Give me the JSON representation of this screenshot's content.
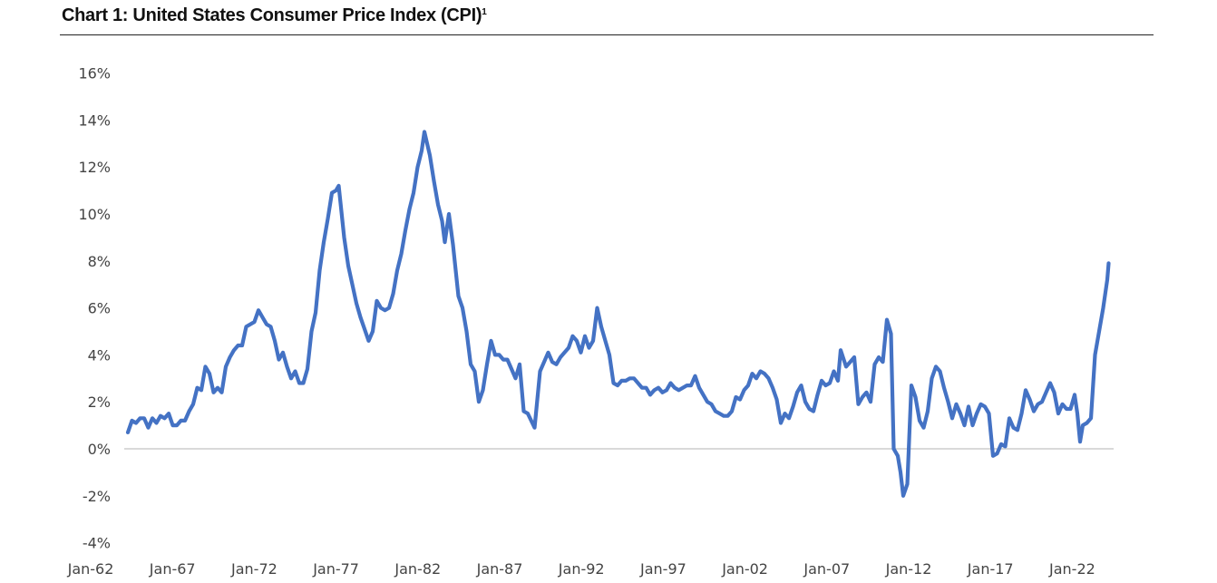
{
  "chart_data": {
    "type": "line",
    "title": "Chart 1: United States Consumer Price Index (CPI)",
    "title_superscript": "1",
    "xlabel": "",
    "ylabel": "",
    "ylim": [
      -4,
      16
    ],
    "y_ticks": [
      "16%",
      "14%",
      "12%",
      "10%",
      "8%",
      "6%",
      "4%",
      "2%",
      "0%",
      "-2%",
      "-4%"
    ],
    "y_tick_values": [
      16,
      14,
      12,
      10,
      8,
      6,
      4,
      2,
      0,
      -2,
      -4
    ],
    "x_ticks": [
      "Jan-62",
      "Jan-67",
      "Jan-72",
      "Jan-77",
      "Jan-82",
      "Jan-87",
      "Jan-92",
      "Jan-97",
      "Jan-02",
      "Jan-07",
      "Jan-12",
      "Jan-17",
      "Jan-22"
    ],
    "grid": false,
    "zero_line": true,
    "legend": "none",
    "colors": {
      "series": "#4472C4",
      "zero_line": "#D9D9D9"
    },
    "series": [
      {
        "points": [
          [
            "1962-01",
            0.7
          ],
          [
            "1962-04",
            1.2
          ],
          [
            "1962-07",
            1.1
          ],
          [
            "1962-10",
            1.3
          ],
          [
            "1963-01",
            1.3
          ],
          [
            "1963-04",
            0.9
          ],
          [
            "1963-07",
            1.3
          ],
          [
            "1963-10",
            1.1
          ],
          [
            "1964-01",
            1.4
          ],
          [
            "1964-04",
            1.3
          ],
          [
            "1964-07",
            1.5
          ],
          [
            "1964-10",
            1.0
          ],
          [
            "1965-01",
            1.0
          ],
          [
            "1965-04",
            1.2
          ],
          [
            "1965-07",
            1.2
          ],
          [
            "1965-10",
            1.6
          ],
          [
            "1966-01",
            1.9
          ],
          [
            "1966-04",
            2.6
          ],
          [
            "1966-07",
            2.5
          ],
          [
            "1966-10",
            3.5
          ],
          [
            "1967-01",
            3.2
          ],
          [
            "1967-04",
            2.4
          ],
          [
            "1967-07",
            2.6
          ],
          [
            "1967-10",
            2.4
          ],
          [
            "1968-01",
            3.5
          ],
          [
            "1968-04",
            3.9
          ],
          [
            "1968-07",
            4.2
          ],
          [
            "1968-10",
            4.4
          ],
          [
            "1969-01",
            4.4
          ],
          [
            "1969-04",
            5.2
          ],
          [
            "1969-07",
            5.3
          ],
          [
            "1969-10",
            5.4
          ],
          [
            "1970-01",
            5.9
          ],
          [
            "1970-04",
            5.6
          ],
          [
            "1970-07",
            5.3
          ],
          [
            "1970-10",
            5.2
          ],
          [
            "1971-01",
            4.6
          ],
          [
            "1971-04",
            3.8
          ],
          [
            "1971-07",
            4.1
          ],
          [
            "1971-10",
            3.5
          ],
          [
            "1972-01",
            3.0
          ],
          [
            "1972-04",
            3.3
          ],
          [
            "1972-07",
            2.8
          ],
          [
            "1972-10",
            2.8
          ],
          [
            "1973-01",
            3.4
          ],
          [
            "1973-04",
            5.0
          ],
          [
            "1973-07",
            5.8
          ],
          [
            "1973-10",
            7.6
          ],
          [
            "1974-01",
            8.8
          ],
          [
            "1974-04",
            9.8
          ],
          [
            "1974-07",
            10.9
          ],
          [
            "1974-10",
            11.0
          ],
          [
            "1974-12",
            11.2
          ],
          [
            "1975-04",
            9.0
          ],
          [
            "1975-07",
            7.8
          ],
          [
            "1975-10",
            7.0
          ],
          [
            "1976-01",
            6.2
          ],
          [
            "1976-04",
            5.6
          ],
          [
            "1976-07",
            5.1
          ],
          [
            "1976-10",
            4.6
          ],
          [
            "1977-01",
            5.0
          ],
          [
            "1977-04",
            6.3
          ],
          [
            "1977-07",
            6.0
          ],
          [
            "1977-10",
            5.9
          ],
          [
            "1978-01",
            6.0
          ],
          [
            "1978-04",
            6.6
          ],
          [
            "1978-07",
            7.6
          ],
          [
            "1978-10",
            8.3
          ],
          [
            "1979-01",
            9.3
          ],
          [
            "1979-04",
            10.2
          ],
          [
            "1979-07",
            10.9
          ],
          [
            "1979-10",
            12.0
          ],
          [
            "1980-01",
            12.7
          ],
          [
            "1980-03",
            13.5
          ],
          [
            "1980-07",
            12.5
          ],
          [
            "1980-10",
            11.4
          ],
          [
            "1981-01",
            10.4
          ],
          [
            "1981-04",
            9.7
          ],
          [
            "1981-06",
            8.8
          ],
          [
            "1981-09",
            10.0
          ],
          [
            "1981-12",
            8.7
          ],
          [
            "1982-04",
            6.5
          ],
          [
            "1982-07",
            6.0
          ],
          [
            "1982-10",
            5.0
          ],
          [
            "1983-01",
            3.6
          ],
          [
            "1983-04",
            3.3
          ],
          [
            "1983-07",
            2.0
          ],
          [
            "1983-10",
            2.5
          ],
          [
            "1984-01",
            3.6
          ],
          [
            "1984-04",
            4.6
          ],
          [
            "1984-07",
            4.0
          ],
          [
            "1984-10",
            4.0
          ],
          [
            "1985-01",
            3.8
          ],
          [
            "1985-04",
            3.8
          ],
          [
            "1985-07",
            3.4
          ],
          [
            "1985-10",
            3.0
          ],
          [
            "1986-01",
            3.6
          ],
          [
            "1986-04",
            1.6
          ],
          [
            "1986-07",
            1.5
          ],
          [
            "1986-12",
            0.9
          ],
          [
            "1987-04",
            3.3
          ],
          [
            "1987-07",
            3.7
          ],
          [
            "1987-10",
            4.1
          ],
          [
            "1988-01",
            3.7
          ],
          [
            "1988-04",
            3.6
          ],
          [
            "1988-07",
            3.9
          ],
          [
            "1988-10",
            4.1
          ],
          [
            "1989-01",
            4.3
          ],
          [
            "1989-04",
            4.8
          ],
          [
            "1989-07",
            4.6
          ],
          [
            "1989-10",
            4.1
          ],
          [
            "1990-01",
            4.8
          ],
          [
            "1990-04",
            4.3
          ],
          [
            "1990-07",
            4.6
          ],
          [
            "1990-10",
            6.0
          ],
          [
            "1991-01",
            5.2
          ],
          [
            "1991-04",
            4.6
          ],
          [
            "1991-07",
            4.0
          ],
          [
            "1991-10",
            2.8
          ],
          [
            "1992-01",
            2.7
          ],
          [
            "1992-04",
            2.9
          ],
          [
            "1992-07",
            2.9
          ],
          [
            "1992-10",
            3.0
          ],
          [
            "1993-01",
            3.0
          ],
          [
            "1993-04",
            2.8
          ],
          [
            "1993-07",
            2.6
          ],
          [
            "1993-10",
            2.6
          ],
          [
            "1994-01",
            2.3
          ],
          [
            "1994-04",
            2.5
          ],
          [
            "1994-07",
            2.6
          ],
          [
            "1994-10",
            2.4
          ],
          [
            "1995-01",
            2.5
          ],
          [
            "1995-04",
            2.8
          ],
          [
            "1995-07",
            2.6
          ],
          [
            "1995-10",
            2.5
          ],
          [
            "1996-01",
            2.6
          ],
          [
            "1996-04",
            2.7
          ],
          [
            "1996-07",
            2.7
          ],
          [
            "1996-10",
            3.1
          ],
          [
            "1997-01",
            2.6
          ],
          [
            "1997-04",
            2.3
          ],
          [
            "1997-07",
            2.0
          ],
          [
            "1997-10",
            1.9
          ],
          [
            "1998-01",
            1.6
          ],
          [
            "1998-04",
            1.5
          ],
          [
            "1998-07",
            1.4
          ],
          [
            "1998-10",
            1.4
          ],
          [
            "1999-01",
            1.6
          ],
          [
            "1999-04",
            2.2
          ],
          [
            "1999-07",
            2.1
          ],
          [
            "1999-10",
            2.5
          ],
          [
            "2000-01",
            2.7
          ],
          [
            "2000-04",
            3.2
          ],
          [
            "2000-07",
            3.0
          ],
          [
            "2000-10",
            3.3
          ],
          [
            "2001-01",
            3.2
          ],
          [
            "2001-04",
            3.0
          ],
          [
            "2001-07",
            2.6
          ],
          [
            "2001-10",
            2.1
          ],
          [
            "2002-01",
            1.1
          ],
          [
            "2002-04",
            1.5
          ],
          [
            "2002-07",
            1.3
          ],
          [
            "2002-10",
            1.8
          ],
          [
            "2003-01",
            2.4
          ],
          [
            "2003-04",
            2.7
          ],
          [
            "2003-07",
            2.0
          ],
          [
            "2003-10",
            1.7
          ],
          [
            "2004-01",
            1.6
          ],
          [
            "2004-04",
            2.3
          ],
          [
            "2004-07",
            2.9
          ],
          [
            "2004-10",
            2.7
          ],
          [
            "2005-01",
            2.8
          ],
          [
            "2005-04",
            3.3
          ],
          [
            "2005-07",
            2.9
          ],
          [
            "2005-09",
            4.2
          ],
          [
            "2006-01",
            3.5
          ],
          [
            "2006-04",
            3.7
          ],
          [
            "2006-07",
            3.9
          ],
          [
            "2006-10",
            1.9
          ],
          [
            "2007-01",
            2.2
          ],
          [
            "2007-04",
            2.4
          ],
          [
            "2007-07",
            2.0
          ],
          [
            "2007-10",
            3.6
          ],
          [
            "2008-01",
            3.9
          ],
          [
            "2008-04",
            3.7
          ],
          [
            "2008-07",
            5.5
          ],
          [
            "2008-10",
            4.9
          ],
          [
            "2008-12",
            0.0
          ],
          [
            "2009-03",
            -0.3
          ],
          [
            "2009-05",
            -1.0
          ],
          [
            "2009-07",
            -2.0
          ],
          [
            "2009-10",
            -1.5
          ],
          [
            "2010-01",
            2.7
          ],
          [
            "2010-04",
            2.2
          ],
          [
            "2010-07",
            1.2
          ],
          [
            "2010-10",
            0.9
          ],
          [
            "2011-01",
            1.6
          ],
          [
            "2011-04",
            3.0
          ],
          [
            "2011-07",
            3.5
          ],
          [
            "2011-10",
            3.3
          ],
          [
            "2012-01",
            2.6
          ],
          [
            "2012-04",
            2.0
          ],
          [
            "2012-07",
            1.3
          ],
          [
            "2012-10",
            1.9
          ],
          [
            "2013-01",
            1.5
          ],
          [
            "2013-04",
            1.0
          ],
          [
            "2013-07",
            1.8
          ],
          [
            "2013-10",
            1.0
          ],
          [
            "2014-01",
            1.5
          ],
          [
            "2014-04",
            1.9
          ],
          [
            "2014-07",
            1.8
          ],
          [
            "2014-10",
            1.5
          ],
          [
            "2015-01",
            -0.3
          ],
          [
            "2015-04",
            -0.2
          ],
          [
            "2015-07",
            0.2
          ],
          [
            "2015-10",
            0.1
          ],
          [
            "2016-01",
            1.3
          ],
          [
            "2016-04",
            0.9
          ],
          [
            "2016-07",
            0.8
          ],
          [
            "2016-10",
            1.5
          ],
          [
            "2017-01",
            2.5
          ],
          [
            "2017-04",
            2.1
          ],
          [
            "2017-07",
            1.6
          ],
          [
            "2017-10",
            1.9
          ],
          [
            "2018-01",
            2.0
          ],
          [
            "2018-04",
            2.4
          ],
          [
            "2018-07",
            2.8
          ],
          [
            "2018-10",
            2.4
          ],
          [
            "2019-01",
            1.5
          ],
          [
            "2019-04",
            1.9
          ],
          [
            "2019-07",
            1.7
          ],
          [
            "2019-10",
            1.7
          ],
          [
            "2020-01",
            2.3
          ],
          [
            "2020-03",
            1.5
          ],
          [
            "2020-05",
            0.3
          ],
          [
            "2020-07",
            1.0
          ],
          [
            "2020-10",
            1.1
          ],
          [
            "2021-01",
            1.3
          ],
          [
            "2021-04",
            4.0
          ],
          [
            "2021-07",
            5.0
          ],
          [
            "2021-10",
            6.0
          ],
          [
            "2022-01",
            7.2
          ],
          [
            "2022-02",
            7.9
          ]
        ]
      }
    ]
  }
}
